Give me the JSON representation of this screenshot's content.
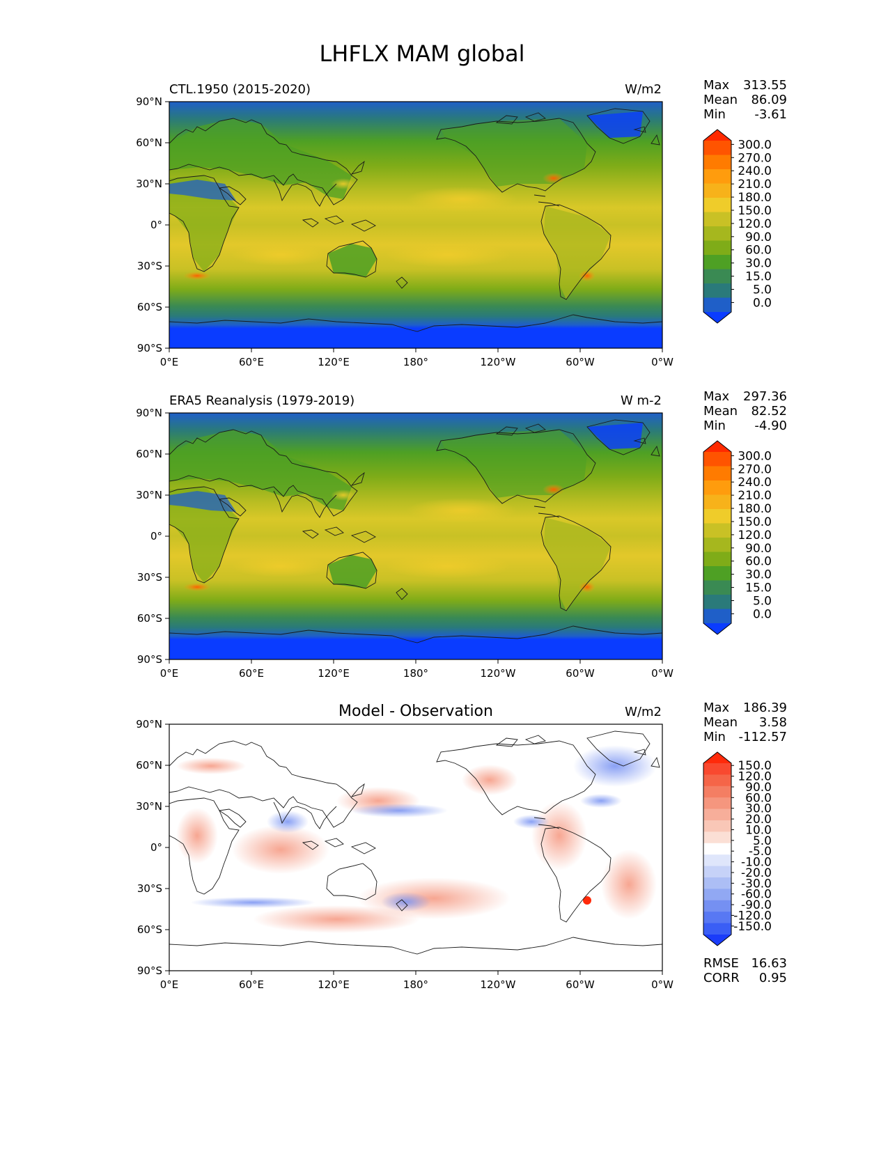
{
  "title": "LHFLX MAM global",
  "lat_ticks": [
    "90°N",
    "60°N",
    "30°N",
    "0°",
    "30°S",
    "60°S",
    "90°S"
  ],
  "lon_ticks": [
    "0°E",
    "60°E",
    "120°E",
    "180°",
    "120°W",
    "60°W",
    "0°W"
  ],
  "panels": [
    {
      "id": "ctl",
      "label": "CTL.1950 (2015-2020)",
      "center_title": "",
      "units": "W/m2",
      "stats": [
        {
          "name": "Max",
          "value": "313.55"
        },
        {
          "name": "Mean",
          "value": "86.09"
        },
        {
          "name": "Min",
          "value": "-3.61"
        }
      ],
      "colorbar": {
        "levels": [
          "300.0",
          "270.0",
          "240.0",
          "210.0",
          "180.0",
          "150.0",
          "120.0",
          "90.0",
          "60.0",
          "30.0",
          "15.0",
          "5.0",
          "0.0"
        ],
        "colors": [
          "#ff2a00",
          "#ff5400",
          "#ff7b00",
          "#ff9c0d",
          "#f7b21a",
          "#efcc2a",
          "#c9c125",
          "#a6b71e",
          "#7fac18",
          "#4ea024",
          "#3a8a53",
          "#2a7a7a",
          "#1f5fc8",
          "#0a3cff"
        ]
      },
      "extra_stats": []
    },
    {
      "id": "era5",
      "label": "ERA5 Reanalysis (1979-2019)",
      "center_title": "",
      "units": "W m-2",
      "stats": [
        {
          "name": "Max",
          "value": "297.36"
        },
        {
          "name": "Mean",
          "value": "82.52"
        },
        {
          "name": "Min",
          "value": "-4.90"
        }
      ],
      "colorbar": {
        "levels": [
          "300.0",
          "270.0",
          "240.0",
          "210.0",
          "180.0",
          "150.0",
          "120.0",
          "90.0",
          "60.0",
          "30.0",
          "15.0",
          "5.0",
          "0.0"
        ],
        "colors": [
          "#ff2a00",
          "#ff5400",
          "#ff7b00",
          "#ff9c0d",
          "#f7b21a",
          "#efcc2a",
          "#c9c125",
          "#a6b71e",
          "#7fac18",
          "#4ea024",
          "#3a8a53",
          "#2a7a7a",
          "#1f5fc8",
          "#0a3cff"
        ]
      },
      "extra_stats": []
    },
    {
      "id": "diff",
      "label": "",
      "center_title": "Model - Observation",
      "units": "W/m2",
      "stats": [
        {
          "name": "Max",
          "value": "186.39"
        },
        {
          "name": "Mean",
          "value": "3.58"
        },
        {
          "name": "Min",
          "value": "-112.57"
        }
      ],
      "colorbar": {
        "levels": [
          "150.0",
          "120.0",
          "90.0",
          "60.0",
          "30.0",
          "20.0",
          "10.0",
          "5.0",
          "-5.0",
          "-10.0",
          "-20.0",
          "-30.0",
          "-60.0",
          "-90.0",
          "-120.0",
          "-150.0"
        ],
        "colors": [
          "#ff2a0a",
          "#f9492f",
          "#f56548",
          "#f47e63",
          "#f5967e",
          "#f7ae9a",
          "#f9c7b7",
          "#fbdfd5",
          "#ffffff",
          "#dfe6fb",
          "#c6d2f8",
          "#acbef5",
          "#91a8f3",
          "#7590f2",
          "#5878f3",
          "#3a5ef5",
          "#1a3cfa"
        ]
      },
      "extra_stats": [
        {
          "name": "RMSE",
          "value": "16.63"
        },
        {
          "name": "CORR",
          "value": "0.95"
        }
      ]
    }
  ]
}
